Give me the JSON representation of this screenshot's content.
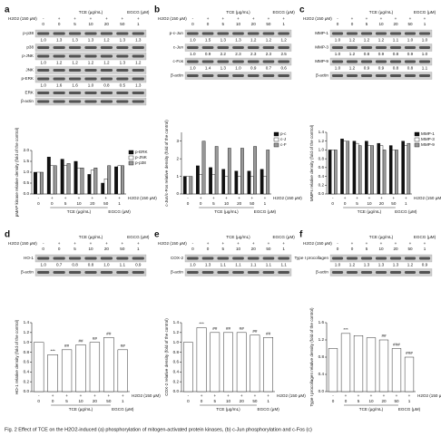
{
  "caption": "Fig. 2 Effect of TCE on the H2O2-induced (a) phosphorylation of mitogen-activated protein kinases, (b) c-Jun phosphorylation and c-Fos (c)",
  "panels": [
    {
      "label": "a",
      "h2o2_label": "H2O2 (150 μM)",
      "tce_label": "TCE (μg/mL)",
      "egcg_label": "EGCG (μM)",
      "doses": [
        "0",
        "0",
        "5",
        "10",
        "20",
        "50",
        "1"
      ],
      "signs": [
        "-",
        "+",
        "+",
        "+",
        "+",
        "+",
        "+"
      ],
      "blots": [
        {
          "name": "p-p38",
          "ratios": [
            "1.0",
            "1.3",
            "1.3",
            "1.3",
            "1.2",
            "1.3",
            "1.3"
          ]
        },
        {
          "name": "p38"
        },
        {
          "name": "p-JNK",
          "ratios": [
            "1.0",
            "1.2",
            "1.2",
            "1.2",
            "1.2",
            "1.3",
            "1.2"
          ]
        },
        {
          "name": "JNK"
        },
        {
          "name": "p-ERK",
          "ratios": [
            "1.0",
            "1.6",
            "1.6",
            "1.0",
            "0.8",
            "0.5",
            "1.3"
          ]
        },
        {
          "name": "ERK"
        },
        {
          "name": "β-actin"
        }
      ]
    },
    {
      "label": "b",
      "h2o2_label": "H2O2 (150 μM)",
      "tce_label": "TCE (μg/mL)",
      "egcg_label": "EGCG (μM)",
      "doses": [
        "0",
        "0",
        "5",
        "10",
        "20",
        "50",
        "1"
      ],
      "signs": [
        "-",
        "+",
        "+",
        "+",
        "+",
        "+",
        "+"
      ],
      "blots": [
        {
          "name": "p-c-Jun",
          "ratios": [
            "1.0",
            "1.5",
            "1.3",
            "1.3",
            "1.2",
            "1.2",
            "1.2"
          ]
        },
        {
          "name": "c-Jun",
          "ratios": [
            "1.0",
            "0.9",
            "2.2",
            "2.3",
            "2.3",
            "2.3",
            "2.5"
          ]
        },
        {
          "name": "c-Fos",
          "ratios": [
            "1.0",
            "1.4",
            "1.3",
            "1.0",
            "0.9",
            "0.7",
            "0.6"
          ]
        },
        {
          "name": "β-actin"
        }
      ]
    },
    {
      "label": "c",
      "h2o2_label": "H2O2 (150 μM)",
      "tce_label": "TCE (μg/mL)",
      "egcg_label": "EGCG (μM)",
      "doses": [
        "0",
        "0",
        "5",
        "10",
        "20",
        "50",
        "1"
      ],
      "signs": [
        "-",
        "+",
        "+",
        "+",
        "+",
        "+",
        "+"
      ],
      "blots": [
        {
          "name": "MMP-1",
          "ratios": [
            "1.0",
            "1.2",
            "1.2",
            "1.2",
            "1.1",
            "1.0",
            "1.0"
          ]
        },
        {
          "name": "MMP-3",
          "ratios": [
            "1.0",
            "1.2",
            "0.8",
            "0.9",
            "0.8",
            "0.9",
            "1.0"
          ]
        },
        {
          "name": "MMP-9",
          "ratios": [
            "1.0",
            "1.2",
            "0.9",
            "0.9",
            "0.8",
            "0.8",
            "1.1"
          ]
        },
        {
          "name": "β-actin"
        }
      ]
    },
    {
      "label": "d",
      "h2o2_label": "H2O2 (150 μM)",
      "tce_label": "TCE (μg/mL)",
      "egcg_label": "EGCG (μM)",
      "doses": [
        "0",
        "0",
        "5",
        "10",
        "20",
        "50",
        "1"
      ],
      "signs": [
        "-",
        "+",
        "+",
        "+",
        "+",
        "+",
        "+"
      ],
      "blots": [
        {
          "name": "HO-1",
          "ratios": [
            "1.0",
            "0.7",
            "0.8",
            "0.8",
            "1.0",
            "1.1",
            "0.9"
          ]
        },
        {
          "name": "β-actin"
        }
      ]
    },
    {
      "label": "e",
      "h2o2_label": "H2O2 (150 μM)",
      "tce_label": "TCE (μg/mL)",
      "egcg_label": "EGCG (μM)",
      "doses": [
        "0",
        "0",
        "5",
        "10",
        "20",
        "50",
        "1"
      ],
      "signs": [
        "-",
        "+",
        "+",
        "+",
        "+",
        "+",
        "+"
      ],
      "blots": [
        {
          "name": "COX-2",
          "ratios": [
            "1.0",
            "1.3",
            "1.1",
            "1.1",
            "1.1",
            "1.1",
            "1.1"
          ]
        },
        {
          "name": "β-actin"
        }
      ]
    },
    {
      "label": "f",
      "h2o2_label": "H2O2 (150 μM)",
      "tce_label": "TCE (μg/mL)",
      "egcg_label": "EGCG (μM)",
      "doses": [
        "0",
        "0",
        "5",
        "10",
        "20",
        "50",
        "1"
      ],
      "signs": [
        "-",
        "+",
        "+",
        "+",
        "+",
        "+",
        "+"
      ],
      "blots": [
        {
          "name": "Type I procollagen",
          "ratios": [
            "1.0",
            "1.2",
            "1.3",
            "1.3",
            "1.3",
            "1.2",
            "0.9"
          ]
        },
        {
          "name": "β-actin"
        }
      ]
    }
  ],
  "chart_data": [
    {
      "type": "bar",
      "y_label": "pMAP kinase relative density (fold of the control)",
      "categories": [
        "0",
        "0",
        "5",
        "10",
        "20",
        "50",
        "1"
      ],
      "h2o2": [
        "-",
        "+",
        "+",
        "+",
        "+",
        "+",
        "+"
      ],
      "h2o2_label": "H2O2 (150 μM)",
      "tce_label": "TCE (μg/mL)",
      "egcg_label": "EGCG (μM)",
      "ylim": [
        0,
        2
      ],
      "yticks": [
        {
          "value": 0,
          "label": "0.0"
        },
        {
          "value": 0.5,
          "label": "0.5"
        },
        {
          "value": 1,
          "label": "1.0"
        },
        {
          "value": 1.5,
          "label": "1.5"
        },
        {
          "value": 2,
          "label": "2.0"
        }
      ],
      "series": [
        {
          "name": "p-ERK",
          "color": "#111111",
          "values": [
            1.0,
            1.7,
            1.6,
            1.5,
            0.9,
            0.5,
            1.25
          ]
        },
        {
          "name": "p-JNK",
          "color": "#ffffff",
          "values": [
            1.0,
            1.3,
            1.3,
            1.2,
            1.1,
            0.7,
            1.3
          ]
        },
        {
          "name": "p-p38",
          "color": "#999999",
          "values": [
            1.0,
            1.3,
            1.4,
            1.2,
            1.2,
            1.3,
            1.3
          ]
        }
      ]
    },
    {
      "type": "bar",
      "y_label": "c-Jun/c-Fos relative density (fold of the control)",
      "categories": [
        "0",
        "0",
        "5",
        "10",
        "20",
        "50",
        "1"
      ],
      "h2o2": [
        "-",
        "+",
        "+",
        "+",
        "+",
        "+",
        "+"
      ],
      "h2o2_label": "H2O2 (150 μM)",
      "tce_label": "TCE (μg/mL)",
      "egcg_label": "EGCG (μM)",
      "ylim": [
        0,
        3.5
      ],
      "yticks": [
        0,
        1,
        2,
        3
      ],
      "series": [
        {
          "name": "p-c",
          "color": "#111111",
          "values": [
            1.0,
            1.6,
            1.5,
            1.4,
            1.3,
            1.3,
            1.4
          ]
        },
        {
          "name": "c-J",
          "color": "#ffffff",
          "values": [
            1.0,
            1.1,
            1.1,
            1.0,
            1.0,
            1.0,
            1.0
          ]
        },
        {
          "name": "c-F",
          "color": "#999999",
          "values": [
            1.0,
            3.0,
            2.7,
            2.6,
            2.6,
            2.7,
            2.5
          ]
        }
      ]
    },
    {
      "type": "bar",
      "y_label": "MMPs relative density (fold of the control)",
      "categories": [
        "0",
        "0",
        "5",
        "10",
        "20",
        "50",
        "1"
      ],
      "h2o2": [
        "-",
        "+",
        "+",
        "+",
        "+",
        "+",
        "+"
      ],
      "h2o2_label": "H2O2 (150 μM)",
      "tce_label": "TCE (μg/mL)",
      "egcg_label": "EGCG (μM)",
      "ylim": [
        0,
        1.4
      ],
      "yticks": [
        {
          "value": 0,
          "label": "0.0"
        },
        {
          "value": 0.2,
          "label": "0.2"
        },
        {
          "value": 0.4,
          "label": "0.4"
        },
        {
          "value": 0.6,
          "label": "0.6"
        },
        {
          "value": 0.8,
          "label": "0.8"
        },
        {
          "value": 1,
          "label": "1.0"
        },
        {
          "value": 1.2,
          "label": "1.2"
        },
        {
          "value": 1.4,
          "label": "1.4"
        }
      ],
      "series": [
        {
          "name": "MMP-1",
          "color": "#111111",
          "values": [
            1.0,
            1.25,
            1.2,
            1.2,
            1.15,
            1.1,
            1.2
          ]
        },
        {
          "name": "MMP-3",
          "color": "#ffffff",
          "values": [
            1.0,
            1.2,
            1.15,
            1.1,
            1.1,
            1.0,
            1.1
          ]
        },
        {
          "name": "MMP-9",
          "color": "#999999",
          "values": [
            1.0,
            1.2,
            1.1,
            1.1,
            1.0,
            1.0,
            1.15
          ]
        }
      ]
    },
    {
      "type": "bar",
      "y_label": "HO-1 relative density (fold of the control)",
      "categories": [
        "0",
        "0",
        "5",
        "10",
        "20",
        "50",
        "1"
      ],
      "h2o2": [
        "-",
        "+",
        "+",
        "+",
        "+",
        "+",
        "+"
      ],
      "h2o2_label": "H2O2 (150 μM)",
      "tce_label": "TCE (μg/mL)",
      "egcg_label": "EGCG (μM)",
      "ylim": [
        0,
        1.4
      ],
      "yticks": [
        {
          "value": 0,
          "label": "0.0"
        },
        {
          "value": 0.2,
          "label": "0.2"
        },
        {
          "value": 0.4,
          "label": "0.4"
        },
        {
          "value": 0.6,
          "label": "0.6"
        },
        {
          "value": 0.8,
          "label": "0.8"
        },
        {
          "value": 1,
          "label": "1.0"
        },
        {
          "value": 1.2,
          "label": "1.2"
        },
        {
          "value": 1.4,
          "label": "1.4"
        }
      ],
      "series": [
        {
          "color": "#ffffff",
          "values": [
            1.0,
            0.75,
            0.85,
            0.95,
            1.0,
            1.1,
            0.85
          ],
          "marks": [
            null,
            "***",
            "##",
            "##",
            "##",
            "##",
            "##"
          ]
        }
      ]
    },
    {
      "type": "bar",
      "y_label": "COX-2 relative density (fold of the control)",
      "categories": [
        "0",
        "0",
        "5",
        "10",
        "20",
        "50",
        "1"
      ],
      "h2o2": [
        "-",
        "+",
        "+",
        "+",
        "+",
        "+",
        "+"
      ],
      "h2o2_label": "H2O2 (150 μM)",
      "tce_label": "TCE (μg/mL)",
      "egcg_label": "EGCG (μM)",
      "ylim": [
        0,
        1.4
      ],
      "yticks": [
        {
          "value": 0,
          "label": "0.0"
        },
        {
          "value": 0.2,
          "label": "0.2"
        },
        {
          "value": 0.4,
          "label": "0.4"
        },
        {
          "value": 0.6,
          "label": "0.6"
        },
        {
          "value": 0.8,
          "label": "0.8"
        },
        {
          "value": 1,
          "label": "1.0"
        },
        {
          "value": 1.2,
          "label": "1.2"
        },
        {
          "value": 1.4,
          "label": "1.4"
        }
      ],
      "series": [
        {
          "color": "#ffffff",
          "values": [
            1.0,
            1.3,
            1.2,
            1.2,
            1.2,
            1.15,
            1.1
          ],
          "marks": [
            null,
            "***",
            "##",
            "##",
            "##",
            "##",
            "##"
          ]
        }
      ]
    },
    {
      "type": "bar",
      "y_label": "Type I procollagen relative density (fold of the control)",
      "categories": [
        "0",
        "0",
        "5",
        "10",
        "20",
        "50",
        "1"
      ],
      "h2o2": [
        "-",
        "+",
        "+",
        "+",
        "+",
        "+",
        "+"
      ],
      "h2o2_label": "H2O2 (150 μM)",
      "tce_label": "TCE (μg/mL)",
      "egcg_label": "EGCG (μM)",
      "ylim": [
        0,
        1.6
      ],
      "yticks": [
        {
          "value": 0,
          "label": "0.0"
        },
        {
          "value": 0.4,
          "label": "0.4"
        },
        {
          "value": 0.8,
          "label": "0.8"
        },
        {
          "value": 1.2,
          "label": "1.2"
        },
        {
          "value": 1.6,
          "label": "1.6"
        }
      ],
      "series": [
        {
          "color": "#ffffff",
          "values": [
            1.0,
            1.35,
            1.3,
            1.25,
            1.2,
            1.0,
            0.8
          ],
          "marks": [
            null,
            "***",
            null,
            null,
            "##",
            "###",
            "###"
          ]
        }
      ]
    }
  ]
}
